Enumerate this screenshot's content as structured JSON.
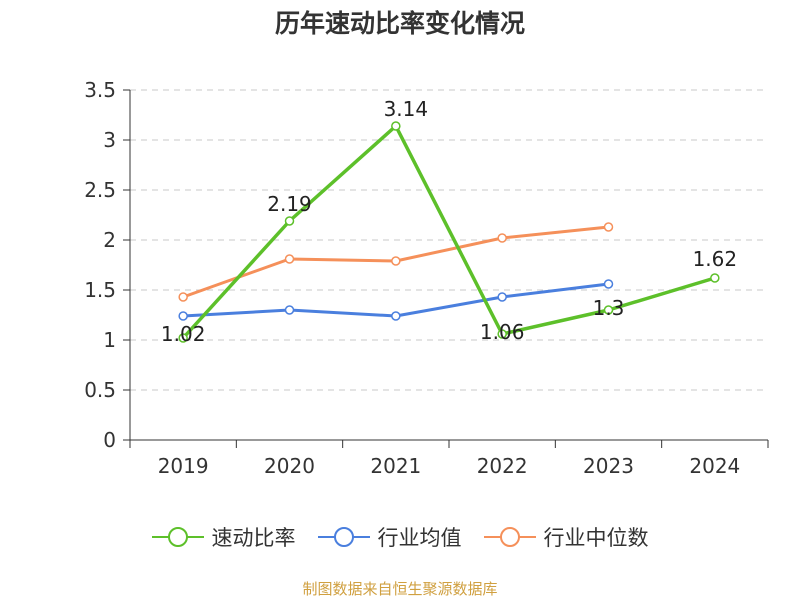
{
  "chart_data": {
    "type": "line",
    "title": "历年速动比率变化情况",
    "categories": [
      "2019",
      "2020",
      "2021",
      "2022",
      "2023",
      "2024"
    ],
    "ylim": [
      0,
      3.5
    ],
    "yticks": [
      "0",
      "0.5",
      "1",
      "1.5",
      "2",
      "2.5",
      "3",
      "3.5"
    ],
    "ytick_values": [
      0,
      0.5,
      1,
      1.5,
      2,
      2.5,
      3,
      3.5
    ],
    "grid": "horizontal dashed",
    "legend_position": "bottom",
    "series": [
      {
        "name": "速动比率",
        "color": "#5dc02a",
        "values": [
          1.02,
          2.19,
          3.14,
          1.06,
          1.3,
          1.62
        ],
        "labels": [
          "1.02",
          "2.19",
          "3.14",
          "1.06",
          "1.3",
          "1.62"
        ]
      },
      {
        "name": "行业均值",
        "color": "#4a7fde",
        "values": [
          1.24,
          1.3,
          1.24,
          1.43,
          1.56,
          null
        ],
        "labels": null
      },
      {
        "name": "行业中位数",
        "color": "#f5905a",
        "values": [
          1.43,
          1.81,
          1.79,
          2.02,
          2.13,
          null
        ],
        "labels": null
      }
    ],
    "source": "制图数据来自恒生聚源数据库"
  }
}
